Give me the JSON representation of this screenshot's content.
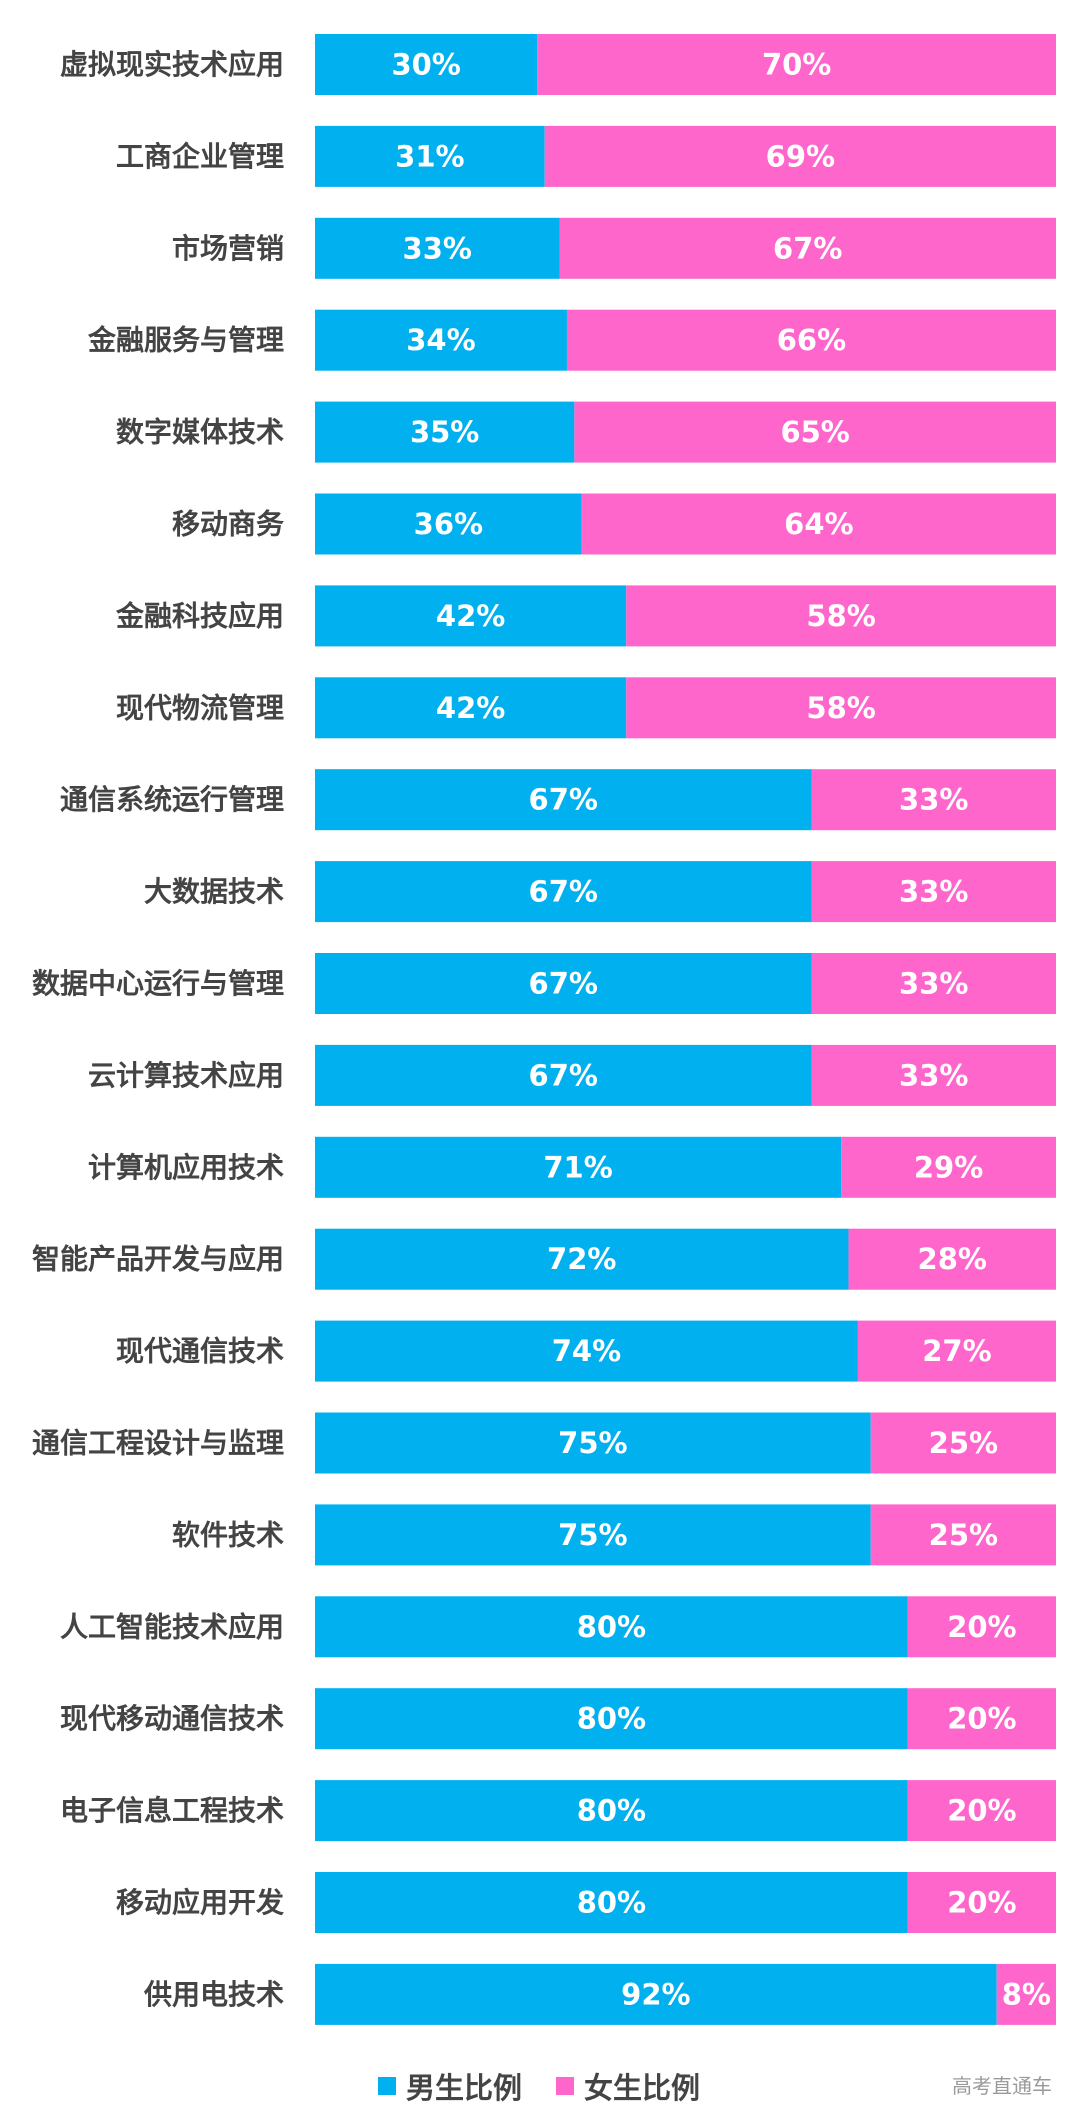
{
  "chart_data": {
    "type": "bar",
    "orientation": "horizontal",
    "stacked": true,
    "percent_stacked": true,
    "categories": [
      "虚拟现实技术应用",
      "工商企业管理",
      "市场营销",
      "金融服务与管理",
      "数字媒体技术",
      "移动商务",
      "金融科技应用",
      "现代物流管理",
      "通信系统运行管理",
      "大数据技术",
      "数据中心运行与管理",
      "云计算技术应用",
      "计算机应用技术",
      "智能产品开发与应用",
      "现代通信技术",
      "通信工程设计与监理",
      "软件技术",
      "人工智能技术应用",
      "现代移动通信技术",
      "电子信息工程技术",
      "移动应用开发",
      "供用电技术"
    ],
    "series": [
      {
        "name": "男生比例",
        "color": "#00b0ef",
        "values": [
          30,
          31,
          33,
          34,
          35,
          36,
          42,
          42,
          67,
          67,
          67,
          67,
          71,
          72,
          74,
          75,
          75,
          80,
          80,
          80,
          80,
          92
        ],
        "labels": [
          "30%",
          "31%",
          "33%",
          "34%",
          "35%",
          "36%",
          "42%",
          "42%",
          "67%",
          "67%",
          "67%",
          "67%",
          "71%",
          "72%",
          "74%",
          "75%",
          "75%",
          "80%",
          "80%",
          "80%",
          "80%",
          "92%"
        ]
      },
      {
        "name": "女生比例",
        "color": "#ff66cc",
        "values": [
          70,
          69,
          67,
          66,
          65,
          64,
          58,
          58,
          33,
          33,
          33,
          33,
          29,
          28,
          27,
          25,
          25,
          20,
          20,
          20,
          20,
          8
        ],
        "labels": [
          "70%",
          "69%",
          "67%",
          "66%",
          "65%",
          "64%",
          "58%",
          "58%",
          "33%",
          "33%",
          "33%",
          "33%",
          "29%",
          "28%",
          "27%",
          "25%",
          "25%",
          "20%",
          "20%",
          "20%",
          "20%",
          "8%"
        ]
      }
    ],
    "grid": false,
    "legend_position": "bottom"
  },
  "watermark": "高考直通车"
}
